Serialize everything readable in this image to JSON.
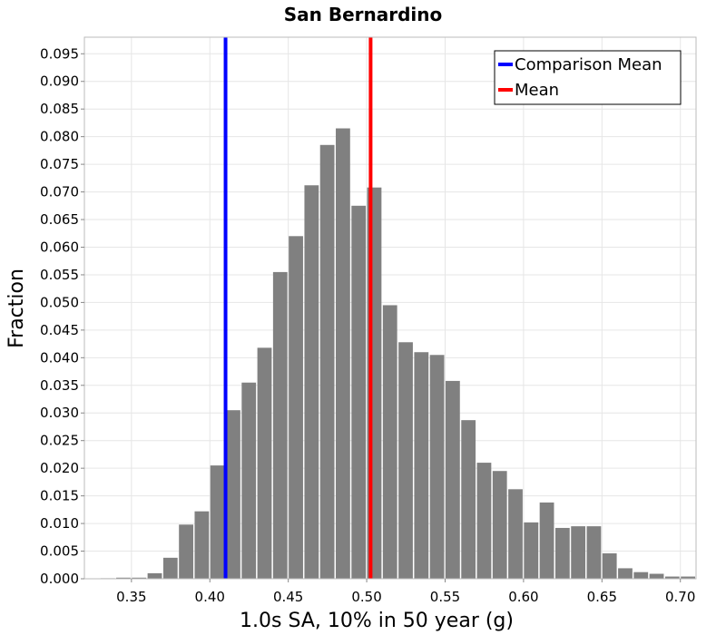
{
  "chart_data": {
    "type": "bar",
    "title": "San Bernardino",
    "xlabel": "1.0s SA, 10% in 50 year (g)",
    "ylabel": "Fraction",
    "xlim": [
      0.32,
      0.71
    ],
    "ylim": [
      0,
      0.098
    ],
    "bin_width": 0.01,
    "bins": [
      {
        "x": 0.335,
        "y": 0.0001
      },
      {
        "x": 0.345,
        "y": 0.0002
      },
      {
        "x": 0.355,
        "y": 0.0002
      },
      {
        "x": 0.365,
        "y": 0.001
      },
      {
        "x": 0.375,
        "y": 0.0038
      },
      {
        "x": 0.385,
        "y": 0.0098
      },
      {
        "x": 0.395,
        "y": 0.0122
      },
      {
        "x": 0.405,
        "y": 0.0205
      },
      {
        "x": 0.415,
        "y": 0.0305
      },
      {
        "x": 0.425,
        "y": 0.0355
      },
      {
        "x": 0.435,
        "y": 0.0418
      },
      {
        "x": 0.445,
        "y": 0.0555
      },
      {
        "x": 0.455,
        "y": 0.062
      },
      {
        "x": 0.465,
        "y": 0.0712
      },
      {
        "x": 0.475,
        "y": 0.0785
      },
      {
        "x": 0.485,
        "y": 0.0815
      },
      {
        "x": 0.495,
        "y": 0.0675
      },
      {
        "x": 0.505,
        "y": 0.0708
      },
      {
        "x": 0.515,
        "y": 0.0495
      },
      {
        "x": 0.525,
        "y": 0.0428
      },
      {
        "x": 0.535,
        "y": 0.041
      },
      {
        "x": 0.545,
        "y": 0.0405
      },
      {
        "x": 0.555,
        "y": 0.0358
      },
      {
        "x": 0.565,
        "y": 0.0287
      },
      {
        "x": 0.575,
        "y": 0.021
      },
      {
        "x": 0.585,
        "y": 0.0195
      },
      {
        "x": 0.595,
        "y": 0.0162
      },
      {
        "x": 0.605,
        "y": 0.0102
      },
      {
        "x": 0.615,
        "y": 0.0138
      },
      {
        "x": 0.625,
        "y": 0.0092
      },
      {
        "x": 0.635,
        "y": 0.0095
      },
      {
        "x": 0.645,
        "y": 0.0095
      },
      {
        "x": 0.655,
        "y": 0.0046
      },
      {
        "x": 0.665,
        "y": 0.0019
      },
      {
        "x": 0.675,
        "y": 0.0012
      },
      {
        "x": 0.685,
        "y": 0.0009
      },
      {
        "x": 0.695,
        "y": 0.0004
      },
      {
        "x": 0.705,
        "y": 0.0004
      }
    ],
    "vlines": [
      {
        "name": "Comparison Mean",
        "x": 0.41,
        "color": "#0000ff"
      },
      {
        "name": "Mean",
        "x": 0.5025,
        "color": "#ff0000"
      }
    ],
    "bar_color": "#808080",
    "x_ticks": [
      "0.35",
      "0.40",
      "0.45",
      "0.50",
      "0.55",
      "0.60",
      "0.65",
      "0.70"
    ],
    "y_ticks": [
      "0.000",
      "0.005",
      "0.010",
      "0.015",
      "0.020",
      "0.025",
      "0.030",
      "0.035",
      "0.040",
      "0.045",
      "0.050",
      "0.055",
      "0.060",
      "0.065",
      "0.070",
      "0.075",
      "0.080",
      "0.085",
      "0.090",
      "0.095"
    ],
    "legend": {
      "position": "top-right",
      "entries": [
        {
          "label": "Comparison Mean",
          "color": "#0000ff"
        },
        {
          "label": "Mean",
          "color": "#ff0000"
        }
      ]
    },
    "grid": true
  }
}
